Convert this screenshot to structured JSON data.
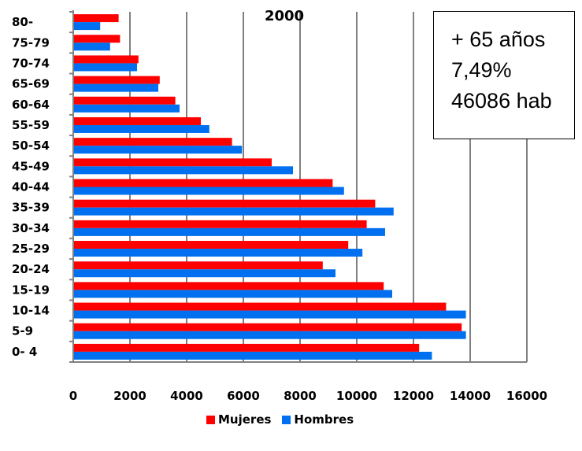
{
  "chart_data": {
    "type": "bar",
    "orientation": "horizontal",
    "title": "2000",
    "categories": [
      "0- 4",
      "5-9",
      "10-14",
      "15-19",
      "20-24",
      "25-29",
      "30-34",
      "35-39",
      "40-44",
      "45-49",
      "50-54",
      "55-59",
      "60-64",
      "65-69",
      "70-74",
      "75-79",
      "80-"
    ],
    "series": [
      {
        "name": "Mujeres",
        "color": "#ff0000",
        "values": [
          12200,
          13700,
          13150,
          10950,
          8800,
          9700,
          10350,
          10650,
          9150,
          7000,
          5600,
          4500,
          3600,
          3050,
          2300,
          1650,
          1600
        ]
      },
      {
        "name": "Hombres",
        "color": "#0070f0",
        "values": [
          12650,
          13850,
          13850,
          11250,
          9250,
          10200,
          11000,
          11300,
          9550,
          7750,
          5950,
          4800,
          3750,
          3000,
          2250,
          1300,
          950
        ]
      }
    ],
    "xlim": [
      0,
      16000
    ],
    "xticks": [
      0,
      2000,
      4000,
      6000,
      8000,
      10000,
      12000,
      14000,
      16000
    ],
    "grid": "vertical",
    "legend": "bottom"
  },
  "annotation": {
    "line1": "+ 65 años",
    "line2": "7,49%",
    "line3": "46086 hab"
  }
}
